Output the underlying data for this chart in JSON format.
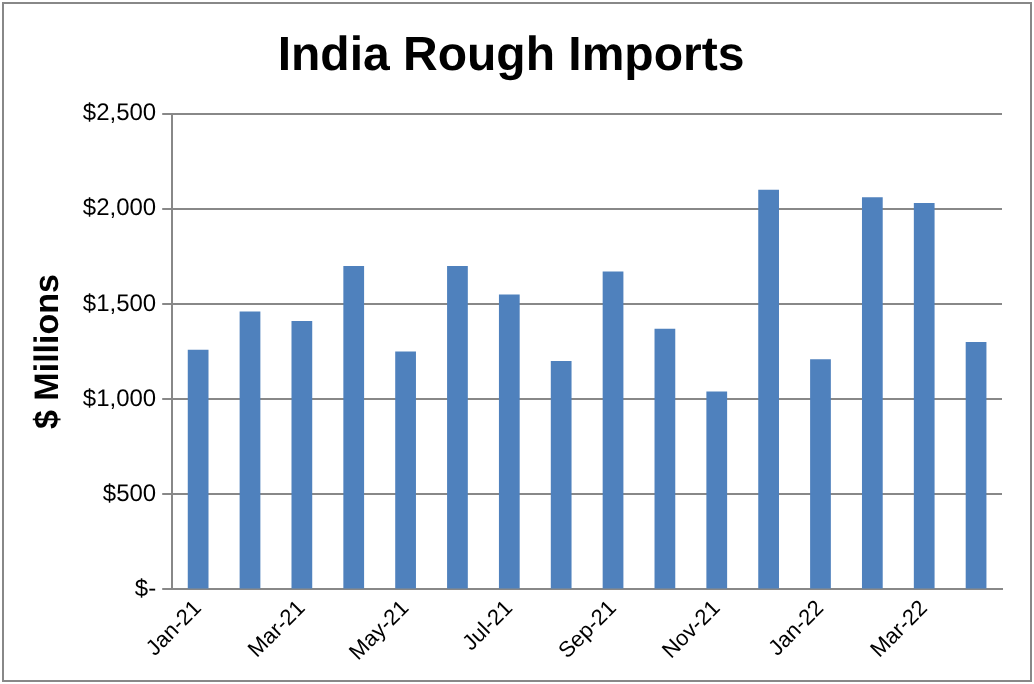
{
  "chart_data": {
    "type": "bar",
    "title": "India Rough Imports",
    "ylabel": "$ Millions",
    "categories": [
      "Jan-21",
      null,
      "Mar-21",
      null,
      "May-21",
      null,
      "Jul-21",
      null,
      "Sep-21",
      null,
      "Nov-21",
      null,
      "Jan-22",
      null,
      "Mar-22",
      null
    ],
    "values": [
      1260,
      1460,
      1410,
      1700,
      1250,
      1700,
      1550,
      1200,
      1670,
      1370,
      1040,
      2100,
      1210,
      2060,
      2030,
      1300
    ],
    "color": "#4f81bd",
    "ylim": [
      0,
      2500
    ],
    "yticks": [
      {
        "value": 0,
        "label": "$-"
      },
      {
        "value": 500,
        "label": "$500"
      },
      {
        "value": 1000,
        "label": "$1,000"
      },
      {
        "value": 1500,
        "label": "$1,500"
      },
      {
        "value": 2000,
        "label": "$2,000"
      },
      {
        "value": 2500,
        "label": "$2,500"
      }
    ],
    "grid": "y",
    "legend": false
  }
}
